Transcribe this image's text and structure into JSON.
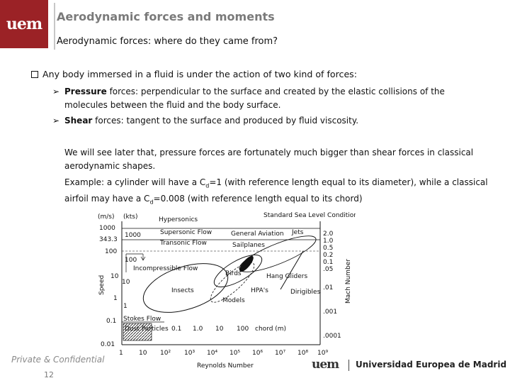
{
  "header": {
    "logo_text": "uem",
    "title": "Aerodynamic forces and moments",
    "subtitle": "Aerodynamic forces: where do they came from?"
  },
  "body": {
    "main_bullet": "Any body immersed in a fluid is under the action of two kind of forces:",
    "pressure": {
      "term": "Pressure",
      "text": " forces: perpendicular to the surface and created by the elastic collisions of the molecules between the fluid and the body surface."
    },
    "shear": {
      "term": "Shear",
      "text": " forces: tangent to the surface and produced by fluid viscosity."
    },
    "note": "We will see later that, pressure forces are fortunately much bigger than shear forces in classical aerodynamic shapes.",
    "example": {
      "part1": "Example: a cylinder will have a C",
      "sub1": "d",
      "part2": "=1 (with reference length equal to its diameter), while a classical airfoil may have a C",
      "sub2": "d",
      "part3": "=0.008 (with reference length equal to its chord)"
    }
  },
  "chart_data": {
    "type": "diagram",
    "title": "Standard Sea Level Conditions",
    "xlabel": "Reynolds Number",
    "ylabel": "Speed",
    "y2label": "Mach Number",
    "y_ticks_ms": [
      "1000",
      "343.3",
      "100",
      "10",
      "1",
      "0.1",
      "0.01"
    ],
    "y_ticks_kts": [
      "1000",
      "100",
      "10",
      "1"
    ],
    "mach_ticks": [
      "2.0",
      "1.0",
      "0.5",
      "0.2",
      "0.1",
      ".05",
      ".01",
      ".001",
      ".0001"
    ],
    "x_ticks": [
      "1",
      "10",
      "10²",
      "10³",
      "10⁴",
      "10⁵",
      "10⁶",
      "10⁷",
      "10⁸",
      "10⁹"
    ],
    "y_units": [
      "(m/s)",
      "(kts)"
    ],
    "chord_ticks": [
      "0.1",
      "1.0",
      "10",
      "100"
    ],
    "chord_label": "chord (m)",
    "regions": [
      "Hypersonics",
      "Supersonic Flow",
      "Transonic Flow",
      "Incompressible Flow",
      "Stokes Flow",
      "Dust Particles",
      "Insects",
      "Birds",
      "Models",
      "HPA's",
      "Hang Gliders",
      "Dirigibles",
      "Sailplanes",
      "General Aviation",
      "Jets"
    ]
  },
  "footer": {
    "confidential": "Private & Confidential",
    "page": "12",
    "logo_mark": "uem",
    "university": "Universidad Europea de Madrid"
  },
  "colors": {
    "brand": "#9b2226",
    "title_gray": "#7a7a7a"
  }
}
